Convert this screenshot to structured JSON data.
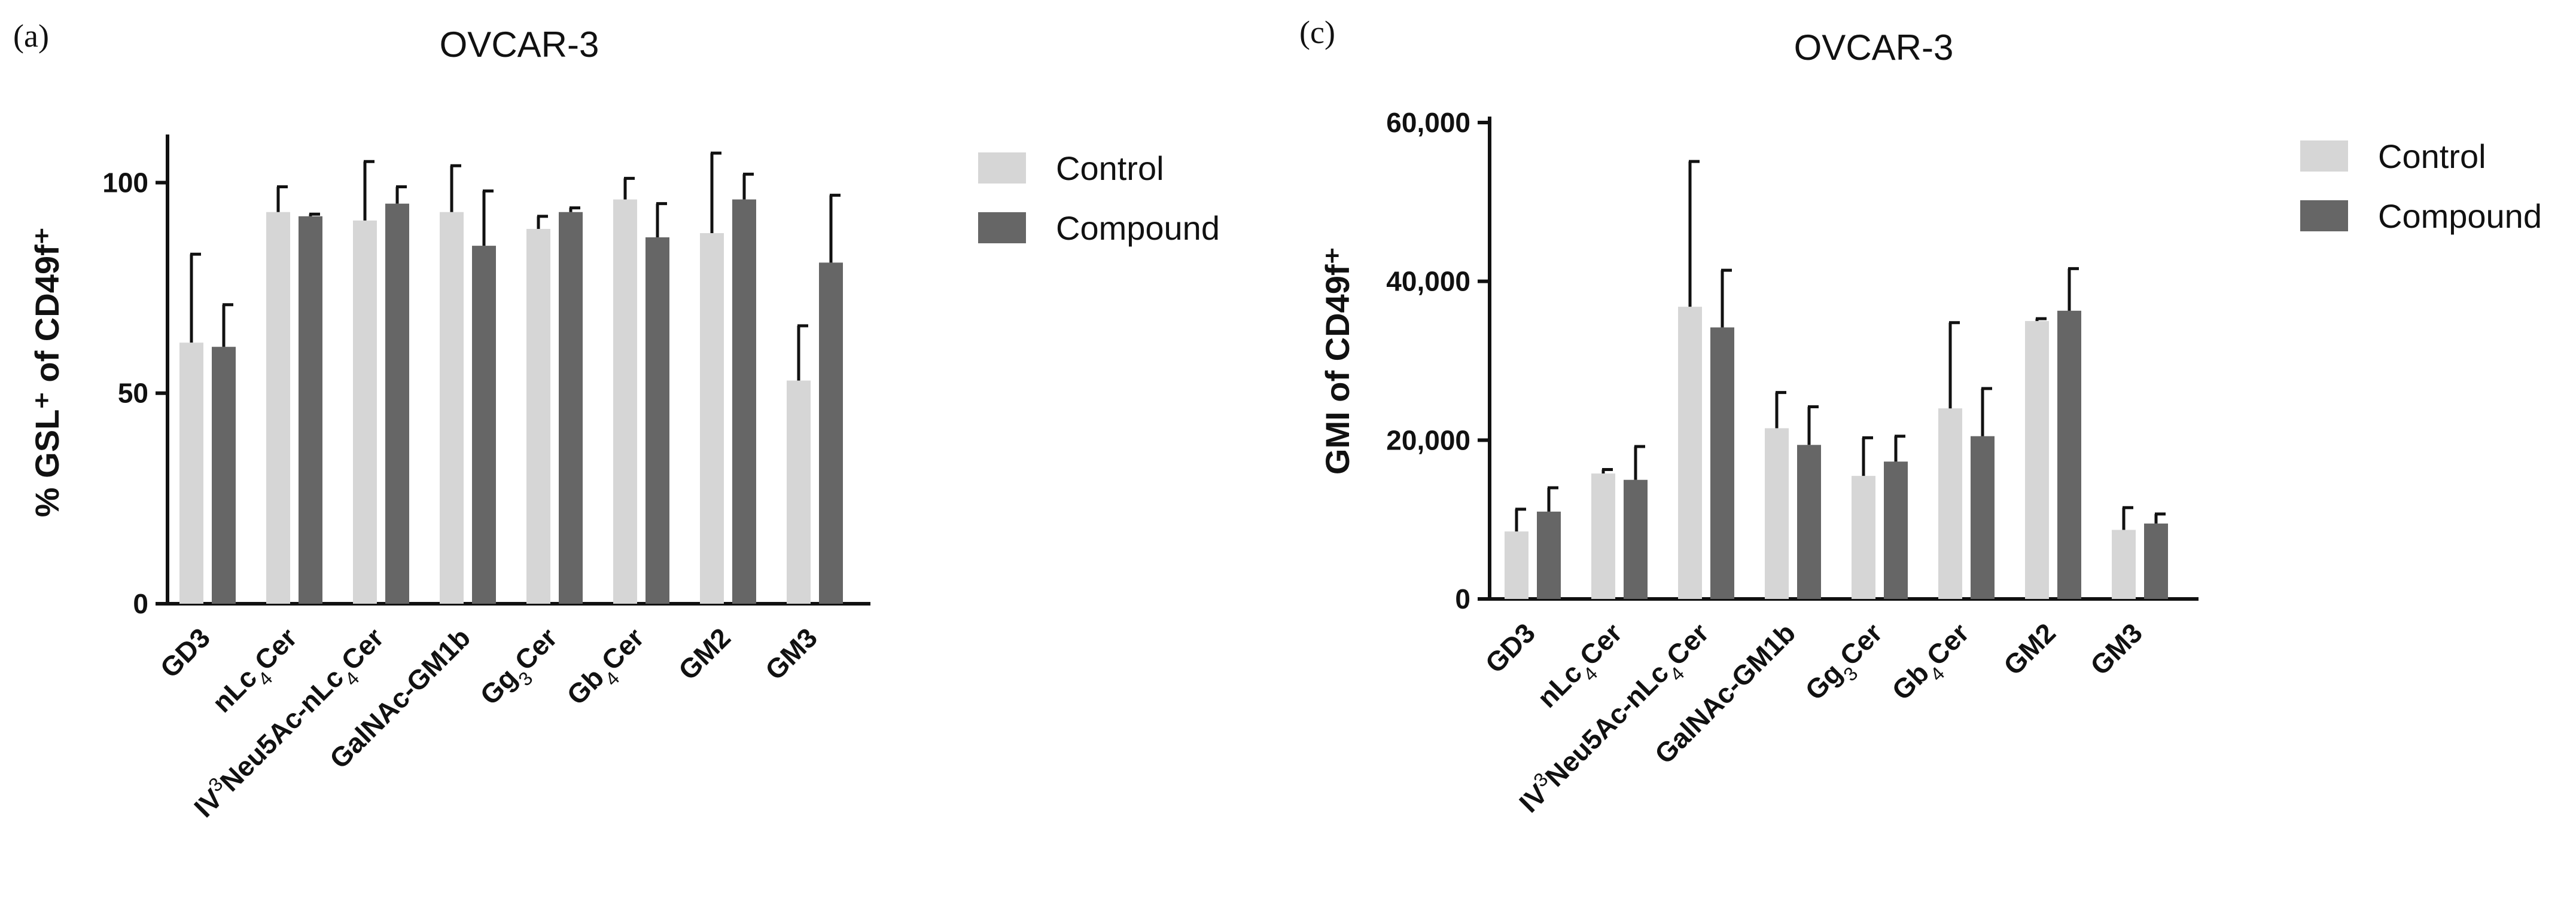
{
  "colors": {
    "control": "#d6d6d6",
    "compound": "#666666",
    "axis": "#111111"
  },
  "chart_data": [
    {
      "panel_label": "(a)",
      "type": "bar",
      "title": "OVCAR-3",
      "ylabel": "% GSL⁺ of CD49f⁺",
      "xlabel": "",
      "ylim": [
        0,
        110
      ],
      "yticks": [
        0,
        50,
        100
      ],
      "ytick_labels": [
        "0",
        "50",
        "100"
      ],
      "categories": [
        {
          "base": "GD3"
        },
        {
          "base": "nLc",
          "sub": "4",
          "rest": "Cer"
        },
        {
          "pre": "IV",
          "sup": "3",
          "base": "Neu5Ac-nLc",
          "sub": "4",
          "rest": "Cer"
        },
        {
          "base": "GalNAc-GM1b"
        },
        {
          "base": "Gg",
          "sub": "3",
          "rest": "Cer"
        },
        {
          "base": "Gb",
          "sub": "4",
          "rest": "Cer"
        },
        {
          "base": "GM2"
        },
        {
          "base": "GM3"
        }
      ],
      "series": [
        {
          "name": "Control",
          "values": [
            62,
            93,
            91,
            93,
            89,
            96,
            88,
            53
          ],
          "errors": [
            21,
            6,
            14,
            11,
            3,
            5,
            19,
            13
          ]
        },
        {
          "name": "Compound",
          "values": [
            61,
            92,
            95,
            85,
            93,
            87,
            96,
            81
          ],
          "errors": [
            10,
            0.5,
            4,
            13,
            1,
            8,
            6,
            16
          ]
        }
      ],
      "legend": [
        "Control",
        "Compound"
      ]
    },
    {
      "panel_label": "(c)",
      "type": "bar",
      "title": "OVCAR-3",
      "ylabel": "GMI  of CD49f⁺",
      "xlabel": "",
      "ylim": [
        0,
        60000
      ],
      "yticks": [
        0,
        20000,
        40000,
        60000
      ],
      "ytick_labels": [
        "0",
        "20,000",
        "40,000",
        "60,000"
      ],
      "categories": [
        {
          "base": "GD3"
        },
        {
          "base": "nLc",
          "sub": "4",
          "rest": "Cer"
        },
        {
          "pre": "IV",
          "sup": "3",
          "base": "Neu5Ac-nLc",
          "sub": "4",
          "rest": "Cer"
        },
        {
          "base": "GalNAc-GM1b"
        },
        {
          "base": "Gg",
          "sub": "3",
          "rest": "Cer"
        },
        {
          "base": "Gb",
          "sub": "4",
          "rest": "Cer"
        },
        {
          "base": "GM2"
        },
        {
          "base": "GM3"
        }
      ],
      "series": [
        {
          "name": "Control",
          "values": [
            8500,
            15800,
            36800,
            21500,
            15500,
            24000,
            35000,
            8700
          ],
          "errors": [
            2800,
            500,
            18300,
            4500,
            4800,
            10800,
            300,
            2800
          ]
        },
        {
          "name": "Compound",
          "values": [
            11000,
            15000,
            34200,
            19400,
            17300,
            20500,
            36300,
            9500
          ],
          "errors": [
            3000,
            4200,
            7200,
            4800,
            3200,
            6000,
            5300,
            1200
          ]
        }
      ],
      "legend": [
        "Control",
        "Compound"
      ]
    }
  ]
}
